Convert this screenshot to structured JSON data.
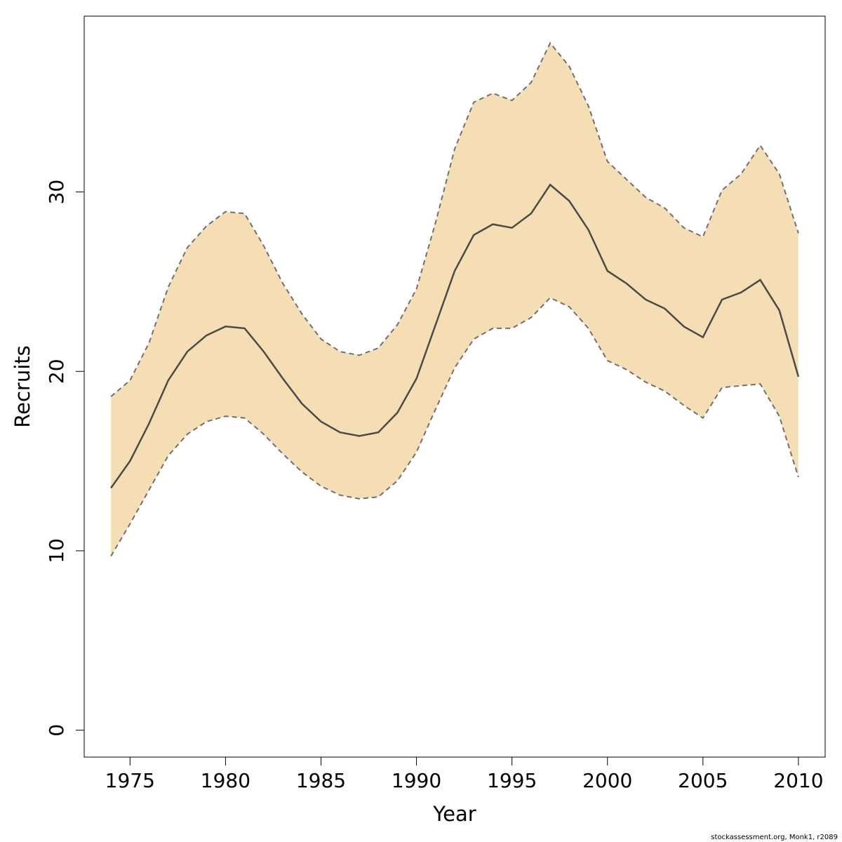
{
  "chart_data": {
    "type": "area",
    "xlabel": "Year",
    "ylabel": "Recruits",
    "xlim": [
      1972.6,
      2011.4
    ],
    "ylim": [
      -1.5,
      39.8
    ],
    "x_ticks": [
      1975,
      1980,
      1985,
      1990,
      1995,
      2000,
      2005,
      2010
    ],
    "y_ticks": [
      0,
      10,
      20,
      30
    ],
    "grid": false,
    "x": [
      1974,
      1975,
      1976,
      1977,
      1978,
      1979,
      1980,
      1981,
      1982,
      1983,
      1984,
      1985,
      1986,
      1987,
      1988,
      1989,
      1990,
      1991,
      1992,
      1993,
      1994,
      1995,
      1996,
      1997,
      1998,
      1999,
      2000,
      2001,
      2002,
      2003,
      2004,
      2005,
      2006,
      2007,
      2008,
      2009,
      2010
    ],
    "series": [
      {
        "role": "estimate",
        "values": [
          13.5,
          15.0,
          17.1,
          19.5,
          21.1,
          22.0,
          22.5,
          22.4,
          21.1,
          19.6,
          18.2,
          17.2,
          16.6,
          16.4,
          16.6,
          17.7,
          19.6,
          22.6,
          25.6,
          27.6,
          28.2,
          28.0,
          28.8,
          30.4,
          29.5,
          27.9,
          25.6,
          24.9,
          24.0,
          23.5,
          22.5,
          21.9,
          24.0,
          24.4,
          25.1,
          23.4,
          19.7
        ]
      },
      {
        "role": "lower",
        "values": [
          9.7,
          11.5,
          13.4,
          15.3,
          16.5,
          17.2,
          17.5,
          17.4,
          16.5,
          15.4,
          14.4,
          13.6,
          13.1,
          12.9,
          13.0,
          13.9,
          15.5,
          17.9,
          20.2,
          21.8,
          22.4,
          22.4,
          23.0,
          24.1,
          23.6,
          22.4,
          20.6,
          20.1,
          19.4,
          18.9,
          18.1,
          17.4,
          19.1,
          19.2,
          19.3,
          17.5,
          14.1
        ]
      },
      {
        "role": "upper",
        "values": [
          18.6,
          19.5,
          21.6,
          24.7,
          26.9,
          28.1,
          28.9,
          28.8,
          27.0,
          24.9,
          23.2,
          21.8,
          21.1,
          20.9,
          21.3,
          22.6,
          24.6,
          28.3,
          32.4,
          35.0,
          35.5,
          35.1,
          36.1,
          38.3,
          37.0,
          34.8,
          31.7,
          30.7,
          29.7,
          29.1,
          28.0,
          27.5,
          30.1,
          31.0,
          32.6,
          31.0,
          27.7
        ]
      }
    ],
    "band_fill": "#f5deb3",
    "line_color": "#4a4a4a",
    "band_edge_color": "#707070"
  },
  "credit": "stockassessment.org, Monk1, r2089"
}
